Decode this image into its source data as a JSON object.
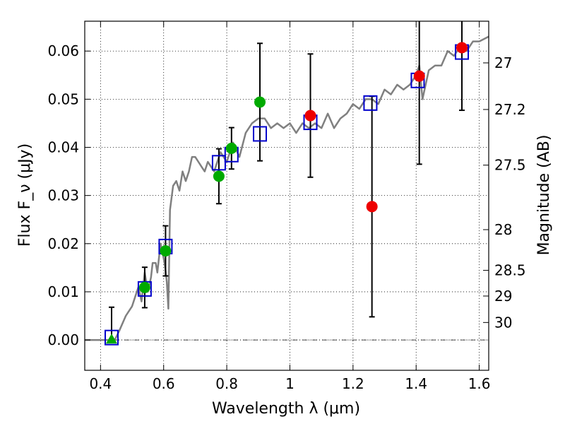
{
  "chart_data": {
    "type": "scatter",
    "xlabel": "Wavelength λ (μm)",
    "ylabel": "Flux F_ν (μJy)",
    "ylabel_right": "Magnitude (AB)",
    "xlim": [
      0.35,
      1.63
    ],
    "ylim": [
      -0.0063,
      0.0662
    ],
    "x_ticks": [
      0.4,
      0.6,
      0.8,
      1.0,
      1.2,
      1.4,
      1.6
    ],
    "x_tick_labels": [
      "0.4",
      "0.6",
      "0.8",
      "1",
      "1.2",
      "1.4",
      "1.6"
    ],
    "y_ticks": [
      0.0,
      0.01,
      0.02,
      0.03,
      0.04,
      0.05,
      0.06
    ],
    "y_tick_labels": [
      "0.00",
      "0.01",
      "0.02",
      "0.03",
      "0.04",
      "0.05",
      "0.06"
    ],
    "right_ticks": [
      {
        "mag": 27,
        "label": "27"
      },
      {
        "mag": 27.2,
        "label": "27.2"
      },
      {
        "mag": 27.5,
        "label": "27.5"
      },
      {
        "mag": 28,
        "label": "28"
      },
      {
        "mag": 28.5,
        "label": "28.5"
      },
      {
        "mag": 29,
        "label": "29"
      },
      {
        "mag": 30,
        "label": "30"
      }
    ],
    "grid": true,
    "zero_line": 0.0,
    "series": [
      {
        "name": "model SED",
        "kind": "line",
        "color": "#808080",
        "x": [
          0.35,
          0.43,
          0.445,
          0.46,
          0.48,
          0.5,
          0.51,
          0.52,
          0.53,
          0.54,
          0.55,
          0.56,
          0.565,
          0.575,
          0.58,
          0.59,
          0.6,
          0.605,
          0.61,
          0.615,
          0.62,
          0.63,
          0.64,
          0.65,
          0.66,
          0.67,
          0.68,
          0.69,
          0.7,
          0.71,
          0.72,
          0.73,
          0.74,
          0.76,
          0.78,
          0.8,
          0.82,
          0.84,
          0.86,
          0.88,
          0.9,
          0.92,
          0.94,
          0.96,
          0.98,
          1.0,
          1.02,
          1.04,
          1.06,
          1.08,
          1.1,
          1.12,
          1.14,
          1.16,
          1.18,
          1.2,
          1.22,
          1.24,
          1.26,
          1.28,
          1.3,
          1.32,
          1.34,
          1.36,
          1.38,
          1.4,
          1.41,
          1.42,
          1.44,
          1.46,
          1.48,
          1.5,
          1.52,
          1.54,
          1.56,
          1.58,
          1.6,
          1.63
        ],
        "y": [
          0.0,
          0.0,
          0.0,
          0.002,
          0.005,
          0.007,
          0.009,
          0.011,
          0.008,
          0.014,
          0.01,
          0.013,
          0.016,
          0.016,
          0.014,
          0.02,
          0.017,
          0.015,
          0.012,
          0.0065,
          0.027,
          0.032,
          0.033,
          0.031,
          0.035,
          0.033,
          0.035,
          0.038,
          0.038,
          0.037,
          0.036,
          0.035,
          0.037,
          0.035,
          0.039,
          0.037,
          0.041,
          0.038,
          0.043,
          0.045,
          0.046,
          0.046,
          0.044,
          0.045,
          0.044,
          0.045,
          0.043,
          0.045,
          0.044,
          0.045,
          0.044,
          0.047,
          0.044,
          0.046,
          0.047,
          0.049,
          0.048,
          0.05,
          0.05,
          0.049,
          0.052,
          0.051,
          0.053,
          0.052,
          0.053,
          0.055,
          0.057,
          0.05,
          0.056,
          0.057,
          0.057,
          0.06,
          0.059,
          0.061,
          0.06,
          0.062,
          0.062,
          0.063
        ]
      },
      {
        "name": "model photometry",
        "kind": "open-square",
        "color": "#0000cc",
        "points": [
          {
            "x": 0.435,
            "y": 0.0005
          },
          {
            "x": 0.54,
            "y": 0.0106
          },
          {
            "x": 0.606,
            "y": 0.0194
          },
          {
            "x": 0.775,
            "y": 0.0368
          },
          {
            "x": 0.815,
            "y": 0.0385
          },
          {
            "x": 0.905,
            "y": 0.0428
          },
          {
            "x": 1.065,
            "y": 0.0452
          },
          {
            "x": 1.255,
            "y": 0.0492
          },
          {
            "x": 1.405,
            "y": 0.0539
          },
          {
            "x": 1.545,
            "y": 0.0598
          }
        ]
      },
      {
        "name": "observed (green)",
        "kind": "circle",
        "color": "#00aa00",
        "points": [
          {
            "x": 0.435,
            "y": 0.0,
            "err": 0.0068,
            "marker": "triangle"
          },
          {
            "x": 0.54,
            "y": 0.0109,
            "err": 0.0042
          },
          {
            "x": 0.606,
            "y": 0.0185,
            "err": 0.0052
          },
          {
            "x": 0.775,
            "y": 0.034,
            "err": 0.0057
          },
          {
            "x": 0.815,
            "y": 0.0398,
            "err": 0.0043
          },
          {
            "x": 0.905,
            "y": 0.0494,
            "err": 0.0122
          }
        ]
      },
      {
        "name": "observed (red)",
        "kind": "circle",
        "color": "#ee0000",
        "points": [
          {
            "x": 1.065,
            "y": 0.0466,
            "err": 0.0128
          },
          {
            "x": 1.26,
            "y": 0.0277,
            "err": 0.0229
          },
          {
            "x": 1.41,
            "y": 0.0548,
            "err": 0.0183
          },
          {
            "x": 1.545,
            "y": 0.0607,
            "err": 0.013
          }
        ]
      }
    ]
  }
}
